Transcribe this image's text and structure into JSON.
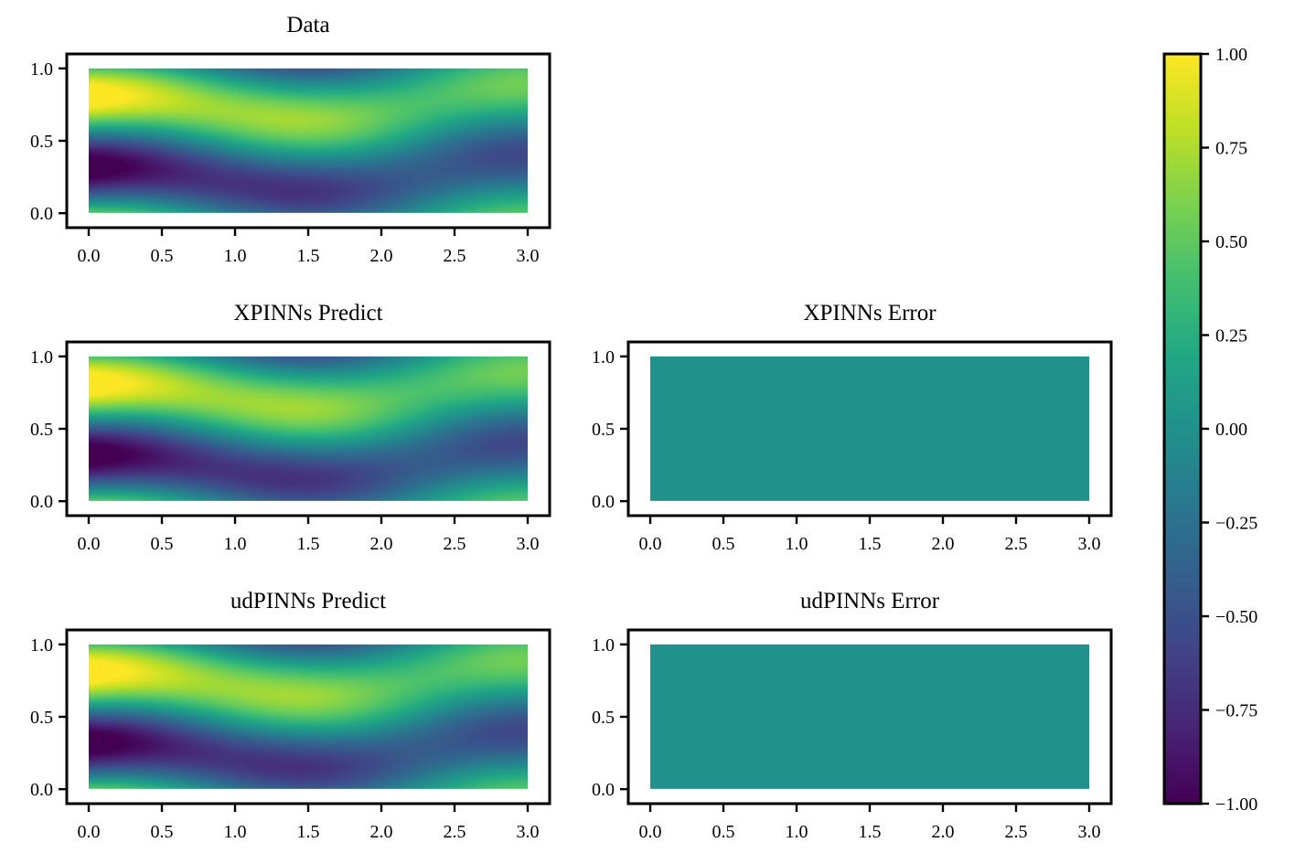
{
  "chart_data": {
    "type": "heatmap",
    "colormap": "viridis",
    "colorbar": {
      "min": -1.0,
      "max": 1.0,
      "ticks": [
        1.0,
        0.75,
        0.5,
        0.25,
        0.0,
        -0.25,
        -0.5,
        -0.75,
        -1.0
      ],
      "tick_labels": [
        "1.00",
        "0.75",
        "0.50",
        "0.25",
        "0.00",
        "−0.25",
        "−0.50",
        "−0.75",
        "−1.00"
      ]
    },
    "axes_common": {
      "xlim": [
        -0.15,
        3.15
      ],
      "ylim": [
        -0.1,
        1.1
      ],
      "xticks": [
        0.0,
        0.5,
        1.0,
        1.5,
        2.0,
        2.5,
        3.0
      ],
      "xtick_labels": [
        "0.0",
        "0.5",
        "1.0",
        "1.5",
        "2.0",
        "2.5",
        "3.0"
      ],
      "yticks": [
        0.0,
        0.5,
        1.0
      ],
      "ytick_labels": [
        "0.0",
        "0.5",
        "1.0"
      ],
      "domain_x": [
        0,
        3
      ],
      "domain_y": [
        0,
        1
      ]
    },
    "panels": [
      {
        "id": "data",
        "title": "Data",
        "field": "wave"
      },
      {
        "id": "xpinns-predict",
        "title": "XPINNs Predict",
        "field": "wave"
      },
      {
        "id": "xpinns-error",
        "title": "XPINNs Error",
        "field": "zero"
      },
      {
        "id": "udpinns-predict",
        "title": "udPINNs Predict",
        "field": "wave"
      },
      {
        "id": "udpinns-error",
        "title": "udPINNs Error",
        "field": "zero"
      }
    ]
  }
}
